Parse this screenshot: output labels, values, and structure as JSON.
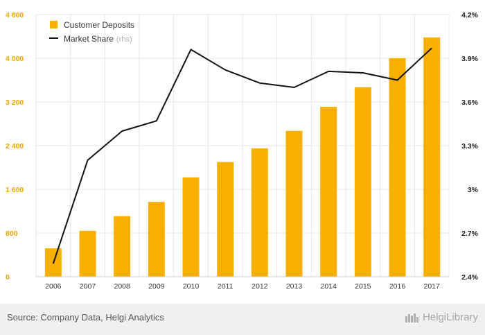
{
  "chart_data": {
    "type": "bar",
    "categories": [
      "2006",
      "2007",
      "2008",
      "2009",
      "2010",
      "2011",
      "2012",
      "2013",
      "2014",
      "2015",
      "2016",
      "2017"
    ],
    "series": [
      {
        "name": "Customer Deposits",
        "type": "bar",
        "axis": "left",
        "values": [
          520,
          840,
          1110,
          1370,
          1820,
          2100,
          2350,
          2670,
          3110,
          3470,
          4000,
          4380
        ]
      },
      {
        "name": "Market Share",
        "name_suffix": "(rhs)",
        "type": "line",
        "axis": "right",
        "values": [
          2.49,
          3.2,
          3.4,
          3.47,
          3.96,
          3.82,
          3.73,
          3.7,
          3.81,
          3.8,
          3.75,
          3.97
        ]
      }
    ],
    "y_left": {
      "ylim": [
        0,
        4800
      ],
      "ticks": [
        "0",
        "800",
        "1 600",
        "2 400",
        "3 200",
        "4 000",
        "4 800"
      ]
    },
    "y_right": {
      "ylim": [
        2.4,
        4.2
      ],
      "ticks": [
        "2.4%",
        "2.7%",
        "3%",
        "3.3%",
        "3.6%",
        "3.9%",
        "4.2%"
      ]
    },
    "grid": true,
    "legend": "top-left",
    "colors": {
      "bar": "#f8b000",
      "line": "#111111",
      "left_ticks": "#f0a500",
      "grid": "#e6e6e6"
    }
  },
  "footer": {
    "source": "Source: Company Data, Helgi Analytics",
    "brand": "HelgiLibrary"
  }
}
